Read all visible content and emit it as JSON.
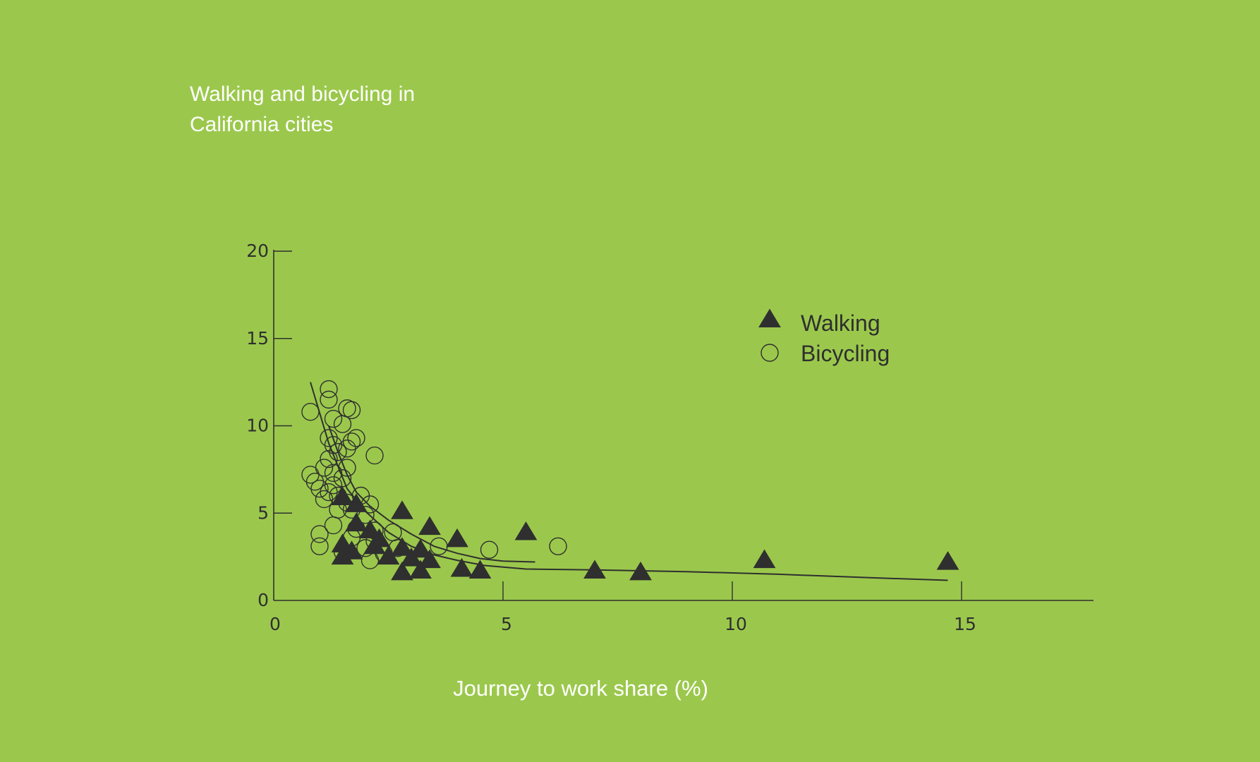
{
  "colors": {
    "background": "#9bc84c",
    "ink": "#2f2f2f",
    "title": "#ffffff"
  },
  "chart_data": {
    "type": "scatter",
    "title_lines": [
      "Walking and bicycling in",
      "California cities"
    ],
    "xlabel": "Journey to work share (%)",
    "ylabel": "",
    "xlim": [
      0,
      18
    ],
    "ylim": [
      0,
      20
    ],
    "x_ticks": [
      0,
      5,
      10,
      15
    ],
    "y_ticks": [
      0,
      5,
      10,
      15,
      20
    ],
    "x_tick_labels": [
      "0",
      "5",
      "10",
      "15"
    ],
    "y_tick_labels": [
      "0",
      "5",
      "10",
      "15",
      "20"
    ],
    "grid": false,
    "legend_position": "upper-right",
    "series": [
      {
        "name": "Walking",
        "marker": "filled-triangle",
        "points": [
          [
            1.5,
            5.9
          ],
          [
            1.8,
            5.5
          ],
          [
            1.8,
            4.4
          ],
          [
            2.1,
            4.0
          ],
          [
            2.3,
            3.5
          ],
          [
            2.2,
            3.1
          ],
          [
            1.5,
            3.2
          ],
          [
            1.5,
            2.5
          ],
          [
            1.7,
            2.8
          ],
          [
            2.5,
            2.5
          ],
          [
            2.8,
            3.0
          ],
          [
            2.8,
            1.6
          ],
          [
            3.0,
            2.4
          ],
          [
            3.2,
            1.7
          ],
          [
            3.2,
            2.9
          ],
          [
            3.4,
            2.3
          ],
          [
            2.8,
            5.1
          ],
          [
            3.4,
            4.2
          ],
          [
            4.0,
            3.5
          ],
          [
            4.1,
            1.8
          ],
          [
            4.5,
            1.7
          ],
          [
            5.5,
            3.9
          ],
          [
            7.0,
            1.7
          ],
          [
            8.0,
            1.6
          ],
          [
            10.7,
            2.3
          ],
          [
            14.7,
            2.2
          ]
        ],
        "trend": [
          [
            0.8,
            12.5
          ],
          [
            1.2,
            9.0
          ],
          [
            1.6,
            6.4
          ],
          [
            2.0,
            5.1
          ],
          [
            2.5,
            3.9
          ],
          [
            3.0,
            3.1
          ],
          [
            3.5,
            2.6
          ],
          [
            4.0,
            2.3
          ],
          [
            4.6,
            2.0
          ],
          [
            5.5,
            1.8
          ],
          [
            7.0,
            1.75
          ],
          [
            9.0,
            1.65
          ],
          [
            11.0,
            1.5
          ],
          [
            13.0,
            1.3
          ],
          [
            14.7,
            1.15
          ]
        ]
      },
      {
        "name": "Bicycling",
        "marker": "open-circle",
        "points": [
          [
            0.8,
            10.8
          ],
          [
            1.2,
            12.1
          ],
          [
            1.2,
            11.5
          ],
          [
            1.6,
            11.0
          ],
          [
            1.7,
            10.9
          ],
          [
            1.3,
            10.4
          ],
          [
            1.5,
            10.1
          ],
          [
            1.2,
            9.3
          ],
          [
            1.3,
            8.9
          ],
          [
            1.8,
            9.3
          ],
          [
            1.7,
            9.1
          ],
          [
            1.4,
            8.5
          ],
          [
            1.6,
            8.7
          ],
          [
            2.2,
            8.3
          ],
          [
            1.2,
            8.1
          ],
          [
            1.1,
            7.6
          ],
          [
            1.6,
            7.6
          ],
          [
            1.3,
            7.3
          ],
          [
            0.8,
            7.2
          ],
          [
            1.5,
            7.0
          ],
          [
            0.9,
            6.8
          ],
          [
            1.3,
            6.6
          ],
          [
            1.0,
            6.4
          ],
          [
            1.2,
            6.2
          ],
          [
            1.4,
            6.0
          ],
          [
            1.9,
            6.0
          ],
          [
            1.1,
            5.8
          ],
          [
            1.6,
            5.6
          ],
          [
            2.1,
            5.5
          ],
          [
            1.4,
            5.2
          ],
          [
            1.7,
            5.2
          ],
          [
            2.0,
            4.9
          ],
          [
            1.3,
            4.3
          ],
          [
            1.8,
            4.1
          ],
          [
            2.2,
            4.0
          ],
          [
            2.6,
            3.9
          ],
          [
            1.0,
            3.8
          ],
          [
            1.7,
            3.6
          ],
          [
            2.2,
            3.4
          ],
          [
            1.0,
            3.1
          ],
          [
            2.0,
            3.0
          ],
          [
            2.7,
            3.0
          ],
          [
            1.5,
            2.8
          ],
          [
            2.4,
            2.7
          ],
          [
            2.1,
            2.3
          ],
          [
            3.6,
            3.1
          ],
          [
            4.7,
            2.9
          ],
          [
            6.2,
            3.1
          ]
        ],
        "trend": [
          [
            1.2,
            10.0
          ],
          [
            1.4,
            8.5
          ],
          [
            1.6,
            7.2
          ],
          [
            1.8,
            6.2
          ],
          [
            2.1,
            5.4
          ],
          [
            2.5,
            4.6
          ],
          [
            3.0,
            3.8
          ],
          [
            3.5,
            3.1
          ],
          [
            4.0,
            2.7
          ],
          [
            4.5,
            2.4
          ],
          [
            5.0,
            2.25
          ],
          [
            5.7,
            2.2
          ]
        ]
      }
    ]
  }
}
